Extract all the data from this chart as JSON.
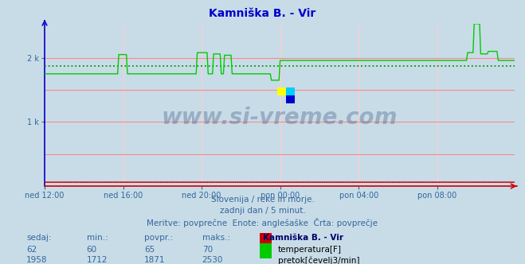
{
  "title": "Kamniška B. - Vir",
  "title_color": "#0000cc",
  "bg_color": "#c8dce8",
  "plot_bg_color": "#c8dce8",
  "grid_color_h": "#ff8888",
  "grid_color_v": "#ffcccc",
  "xlabel_ticks": [
    "ned 12:00",
    "ned 16:00",
    "ned 20:00",
    "pon 00:00",
    "pon 04:00",
    "pon 08:00"
  ],
  "tick_positions": [
    0,
    72,
    144,
    216,
    288,
    360
  ],
  "total_points": 432,
  "ymin": 0,
  "ymax": 2530,
  "flow_color": "#00cc00",
  "temp_color": "#cc0000",
  "avg_line_color": "#009900",
  "avg_flow": 1871,
  "avg_temp": 65,
  "footer_lines": [
    "Slovenija / reke in morje.",
    "zadnji dan / 5 minut.",
    "Meritve: povprečne  Enote: anglešaške  Črta: povprečje"
  ],
  "footer_color": "#336699",
  "table_header_left": [
    "sedaj:",
    "min.:",
    "povpr.:",
    "maks.:"
  ],
  "table_header_right": "Kamniška B. - Vir",
  "table_temp": [
    62,
    60,
    65,
    70
  ],
  "table_flow": [
    1958,
    1712,
    1871,
    2530
  ],
  "legend_temp_label": "temperatura[F]",
  "legend_flow_label": "pretok[čevelj3/min]",
  "watermark_text": "www.si-vreme.com",
  "watermark_color": "#1a3a6a",
  "left_axis_color": "#0000cc",
  "bottom_axis_color": "#cc0000"
}
